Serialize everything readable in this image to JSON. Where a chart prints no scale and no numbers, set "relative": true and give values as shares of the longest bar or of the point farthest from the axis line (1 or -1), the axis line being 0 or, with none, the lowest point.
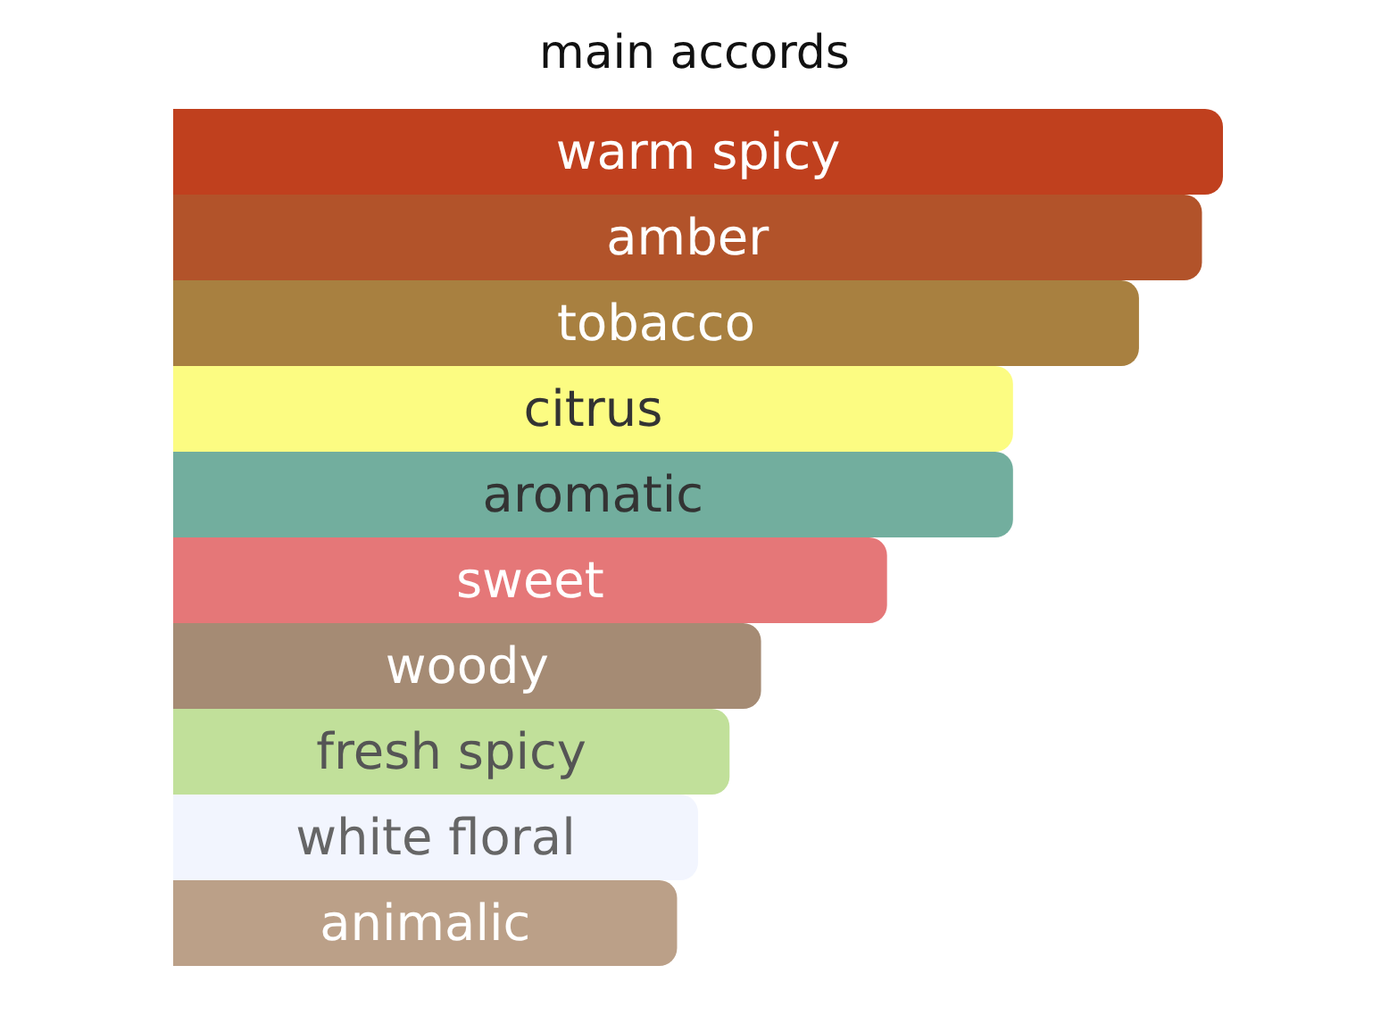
{
  "chart_data": {
    "type": "bar",
    "title": "main accords",
    "orientation": "horizontal",
    "relative": true,
    "categories": [
      "warm spicy",
      "amber",
      "tobacco",
      "citrus",
      "aromatic",
      "sweet",
      "woody",
      "fresh spicy",
      "white floral",
      "animalic"
    ],
    "values": [
      1,
      0.98,
      0.92,
      0.8,
      0.8,
      0.68,
      0.56,
      0.53,
      0.5,
      0.48
    ],
    "colors": [
      "#c0401e",
      "#b2532a",
      "#a88040",
      "#fcfc82",
      "#72ae9e",
      "#e57778",
      "#a58b74",
      "#c1e09a",
      "#f2f5fe",
      "#bba088"
    ]
  }
}
